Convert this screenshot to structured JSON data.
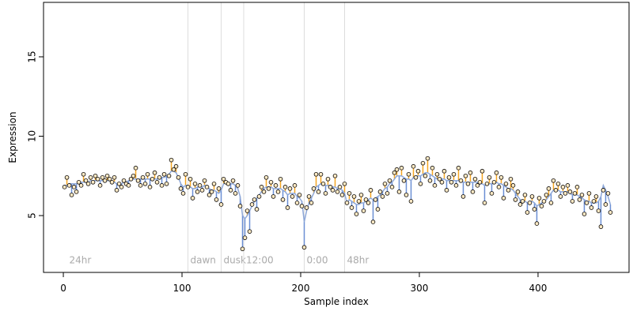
{
  "chart_data": {
    "type": "scatter",
    "xlabel": "Sample index",
    "ylabel": "Expression",
    "xlim": [
      -16.7,
      476.7
    ],
    "ylim": [
      1.42,
      18.43
    ],
    "xticks": [
      0,
      100,
      200,
      300,
      400
    ],
    "yticks": [
      5,
      10,
      15
    ],
    "point_fill": "#fde9c4",
    "above_color": "#f5a623",
    "below_color": "#6b8fd4",
    "fit_color": "#8ea8d8",
    "annotation_color": "#aaaaaa",
    "annotations": [
      {
        "x": 3,
        "label": "24hr",
        "line": false
      },
      {
        "x": 105,
        "label": "dawn",
        "line": true
      },
      {
        "x": 133,
        "label": "dusk",
        "line": true
      },
      {
        "x": 152,
        "label": "12:00",
        "line": true
      },
      {
        "x": 203,
        "label": "0:00",
        "line": true
      },
      {
        "x": 237,
        "label": "48hr",
        "line": true
      }
    ],
    "annotation_y": 2,
    "x": [
      1,
      3,
      5,
      7,
      9,
      11,
      13,
      15,
      17,
      19,
      21,
      23,
      25,
      27,
      29,
      31,
      33,
      35,
      37,
      39,
      41,
      43,
      45,
      47,
      49,
      51,
      53,
      55,
      57,
      59,
      61,
      63,
      65,
      67,
      69,
      71,
      73,
      75,
      77,
      79,
      81,
      83,
      85,
      87,
      89,
      91,
      93,
      95,
      97,
      99,
      101,
      103,
      105,
      107,
      109,
      111,
      113,
      115,
      117,
      119,
      121,
      123,
      125,
      127,
      129,
      131,
      133,
      135,
      137,
      139,
      141,
      143,
      145,
      147,
      149,
      151,
      153,
      155,
      157,
      159,
      161,
      163,
      165,
      167,
      169,
      171,
      173,
      175,
      177,
      179,
      181,
      183,
      185,
      187,
      189,
      191,
      193,
      195,
      197,
      199,
      201,
      203,
      205,
      207,
      209,
      211,
      213,
      215,
      217,
      219,
      221,
      223,
      225,
      227,
      229,
      231,
      233,
      235,
      237,
      239,
      241,
      243,
      245,
      247,
      249,
      251,
      253,
      255,
      257,
      259,
      261,
      263,
      265,
      267,
      269,
      271,
      273,
      275,
      277,
      279,
      281,
      283,
      285,
      287,
      289,
      291,
      293,
      295,
      297,
      299,
      301,
      303,
      305,
      307,
      309,
      311,
      313,
      315,
      317,
      319,
      321,
      323,
      325,
      327,
      329,
      331,
      333,
      335,
      337,
      339,
      341,
      343,
      345,
      347,
      349,
      351,
      353,
      355,
      357,
      359,
      361,
      363,
      365,
      367,
      369,
      371,
      373,
      375,
      377,
      379,
      381,
      383,
      385,
      387,
      389,
      391,
      393,
      395,
      397,
      399,
      401,
      403,
      405,
      407,
      409,
      411,
      413,
      415,
      417,
      419,
      421,
      423,
      425,
      427,
      429,
      431,
      433,
      435,
      437,
      439,
      441,
      443,
      445,
      447,
      449,
      451,
      453,
      455,
      457,
      459,
      461
    ],
    "values": [
      6.8,
      7.4,
      6.9,
      6.3,
      6.8,
      6.5,
      7.1,
      6.9,
      7.6,
      7.2,
      7.0,
      7.4,
      7.1,
      7.5,
      7.3,
      6.9,
      7.4,
      7.2,
      7.5,
      7.3,
      7.1,
      7.4,
      6.6,
      7.0,
      6.8,
      7.2,
      7.0,
      6.9,
      7.3,
      7.5,
      8.0,
      7.2,
      6.9,
      7.4,
      7.0,
      7.6,
      6.8,
      7.3,
      7.7,
      7.1,
      7.4,
      6.9,
      7.6,
      7.0,
      7.5,
      8.5,
      7.9,
      8.1,
      7.4,
      6.7,
      6.4,
      7.6,
      6.8,
      7.3,
      6.1,
      7.0,
      6.5,
      6.9,
      6.6,
      7.2,
      6.8,
      6.3,
      6.5,
      7.0,
      6.0,
      6.7,
      5.7,
      7.3,
      7.1,
      7.0,
      6.6,
      7.2,
      6.4,
      6.9,
      5.6,
      2.9,
      3.6,
      5.3,
      4.0,
      5.7,
      6.0,
      5.4,
      6.2,
      6.8,
      6.5,
      7.4,
      6.7,
      7.1,
      6.2,
      6.9,
      6.5,
      7.3,
      6.0,
      6.8,
      5.5,
      6.7,
      6.2,
      6.9,
      5.8,
      6.3,
      5.6,
      3.0,
      5.5,
      6.2,
      5.8,
      6.7,
      7.6,
      6.5,
      7.6,
      7.0,
      6.4,
      7.3,
      6.8,
      6.6,
      7.5,
      6.5,
      6.8,
      6.3,
      7.0,
      5.8,
      6.4,
      5.5,
      6.2,
      5.1,
      5.9,
      6.3,
      5.3,
      6.0,
      5.8,
      6.6,
      4.6,
      6.0,
      5.4,
      6.5,
      6.2,
      7.0,
      6.4,
      7.2,
      6.8,
      7.7,
      7.9,
      6.5,
      8.0,
      7.2,
      6.3,
      7.6,
      5.9,
      8.1,
      7.4,
      7.8,
      7.0,
      8.3,
      7.5,
      8.6,
      7.2,
      8.0,
      6.9,
      7.6,
      7.3,
      7.1,
      7.8,
      6.6,
      7.4,
      7.1,
      7.6,
      6.9,
      8.0,
      7.2,
      6.2,
      7.5,
      7.0,
      7.7,
      6.5,
      7.3,
      6.9,
      7.1,
      7.8,
      5.8,
      7.0,
      7.4,
      6.4,
      7.1,
      7.7,
      6.8,
      7.4,
      6.1,
      7.0,
      6.6,
      7.3,
      6.9,
      6.0,
      6.5,
      5.7,
      5.9,
      6.3,
      5.2,
      5.8,
      6.2,
      5.4,
      4.5,
      6.1,
      5.6,
      5.9,
      6.3,
      6.7,
      5.8,
      7.2,
      6.6,
      7.0,
      6.2,
      6.8,
      6.4,
      6.9,
      6.5,
      5.9,
      6.4,
      6.8,
      6.0,
      6.3,
      5.1,
      5.8,
      6.4,
      5.5,
      5.9,
      6.2,
      5.3,
      4.3,
      6.6,
      5.7,
      6.4,
      5.2
    ],
    "fit": [
      6.9,
      6.9,
      7.0,
      7.0,
      7.0,
      7.0,
      7.0,
      7.1,
      7.1,
      7.1,
      7.1,
      7.2,
      7.2,
      7.2,
      7.2,
      7.2,
      7.2,
      7.2,
      7.2,
      7.2,
      7.2,
      7.1,
      7.0,
      7.0,
      7.0,
      7.1,
      7.1,
      7.2,
      7.2,
      7.3,
      7.3,
      7.3,
      7.3,
      7.3,
      7.3,
      7.3,
      7.3,
      7.3,
      7.3,
      7.3,
      7.4,
      7.4,
      7.4,
      7.5,
      7.6,
      7.8,
      7.8,
      7.7,
      7.4,
      7.0,
      6.8,
      6.9,
      6.9,
      6.8,
      6.7,
      6.7,
      6.8,
      6.8,
      6.8,
      6.9,
      6.8,
      6.7,
      6.6,
      6.6,
      6.5,
      6.4,
      6.6,
      7.0,
      7.1,
      7.1,
      7.0,
      7.0,
      6.9,
      6.7,
      6.2,
      5.0,
      4.8,
      5.0,
      5.3,
      5.6,
      5.9,
      6.1,
      6.3,
      6.5,
      6.7,
      6.8,
      6.8,
      6.8,
      6.7,
      6.7,
      6.7,
      6.7,
      6.6,
      6.5,
      6.3,
      6.4,
      6.4,
      6.4,
      6.2,
      6.1,
      5.9,
      4.6,
      5.3,
      5.8,
      6.1,
      6.4,
      6.8,
      6.9,
      7.0,
      7.0,
      6.9,
      6.9,
      6.9,
      6.8,
      6.8,
      6.7,
      6.7,
      6.6,
      6.4,
      5.8,
      6.0,
      5.9,
      5.8,
      5.7,
      5.7,
      5.8,
      5.8,
      5.9,
      6.0,
      6.1,
      6.0,
      6.1,
      6.2,
      6.3,
      6.5,
      6.7,
      6.8,
      7.0,
      7.1,
      7.3,
      7.5,
      7.5,
      7.5,
      7.4,
      7.3,
      7.3,
      7.2,
      7.4,
      7.5,
      7.5,
      7.5,
      7.6,
      7.7,
      7.7,
      7.6,
      7.5,
      7.4,
      7.3,
      7.3,
      7.3,
      7.3,
      7.2,
      7.2,
      7.2,
      7.2,
      7.2,
      7.2,
      7.2,
      7.1,
      7.1,
      7.1,
      7.1,
      7.1,
      7.1,
      7.1,
      7.0,
      7.0,
      6.9,
      7.0,
      7.0,
      7.0,
      7.0,
      7.1,
      7.0,
      7.0,
      6.9,
      6.8,
      6.7,
      6.7,
      6.6,
      6.4,
      6.2,
      6.0,
      5.9,
      5.9,
      5.8,
      5.9,
      5.9,
      5.8,
      5.6,
      5.7,
      5.8,
      5.9,
      6.0,
      6.2,
      6.4,
      6.6,
      6.6,
      6.6,
      6.5,
      6.5,
      6.5,
      6.5,
      6.4,
      6.3,
      6.3,
      6.3,
      6.2,
      6.1,
      6.0,
      5.9,
      5.9,
      5.8,
      5.8,
      5.8,
      5.9,
      6.2,
      6.9,
      6.6,
      6.2,
      5.7
    ]
  }
}
